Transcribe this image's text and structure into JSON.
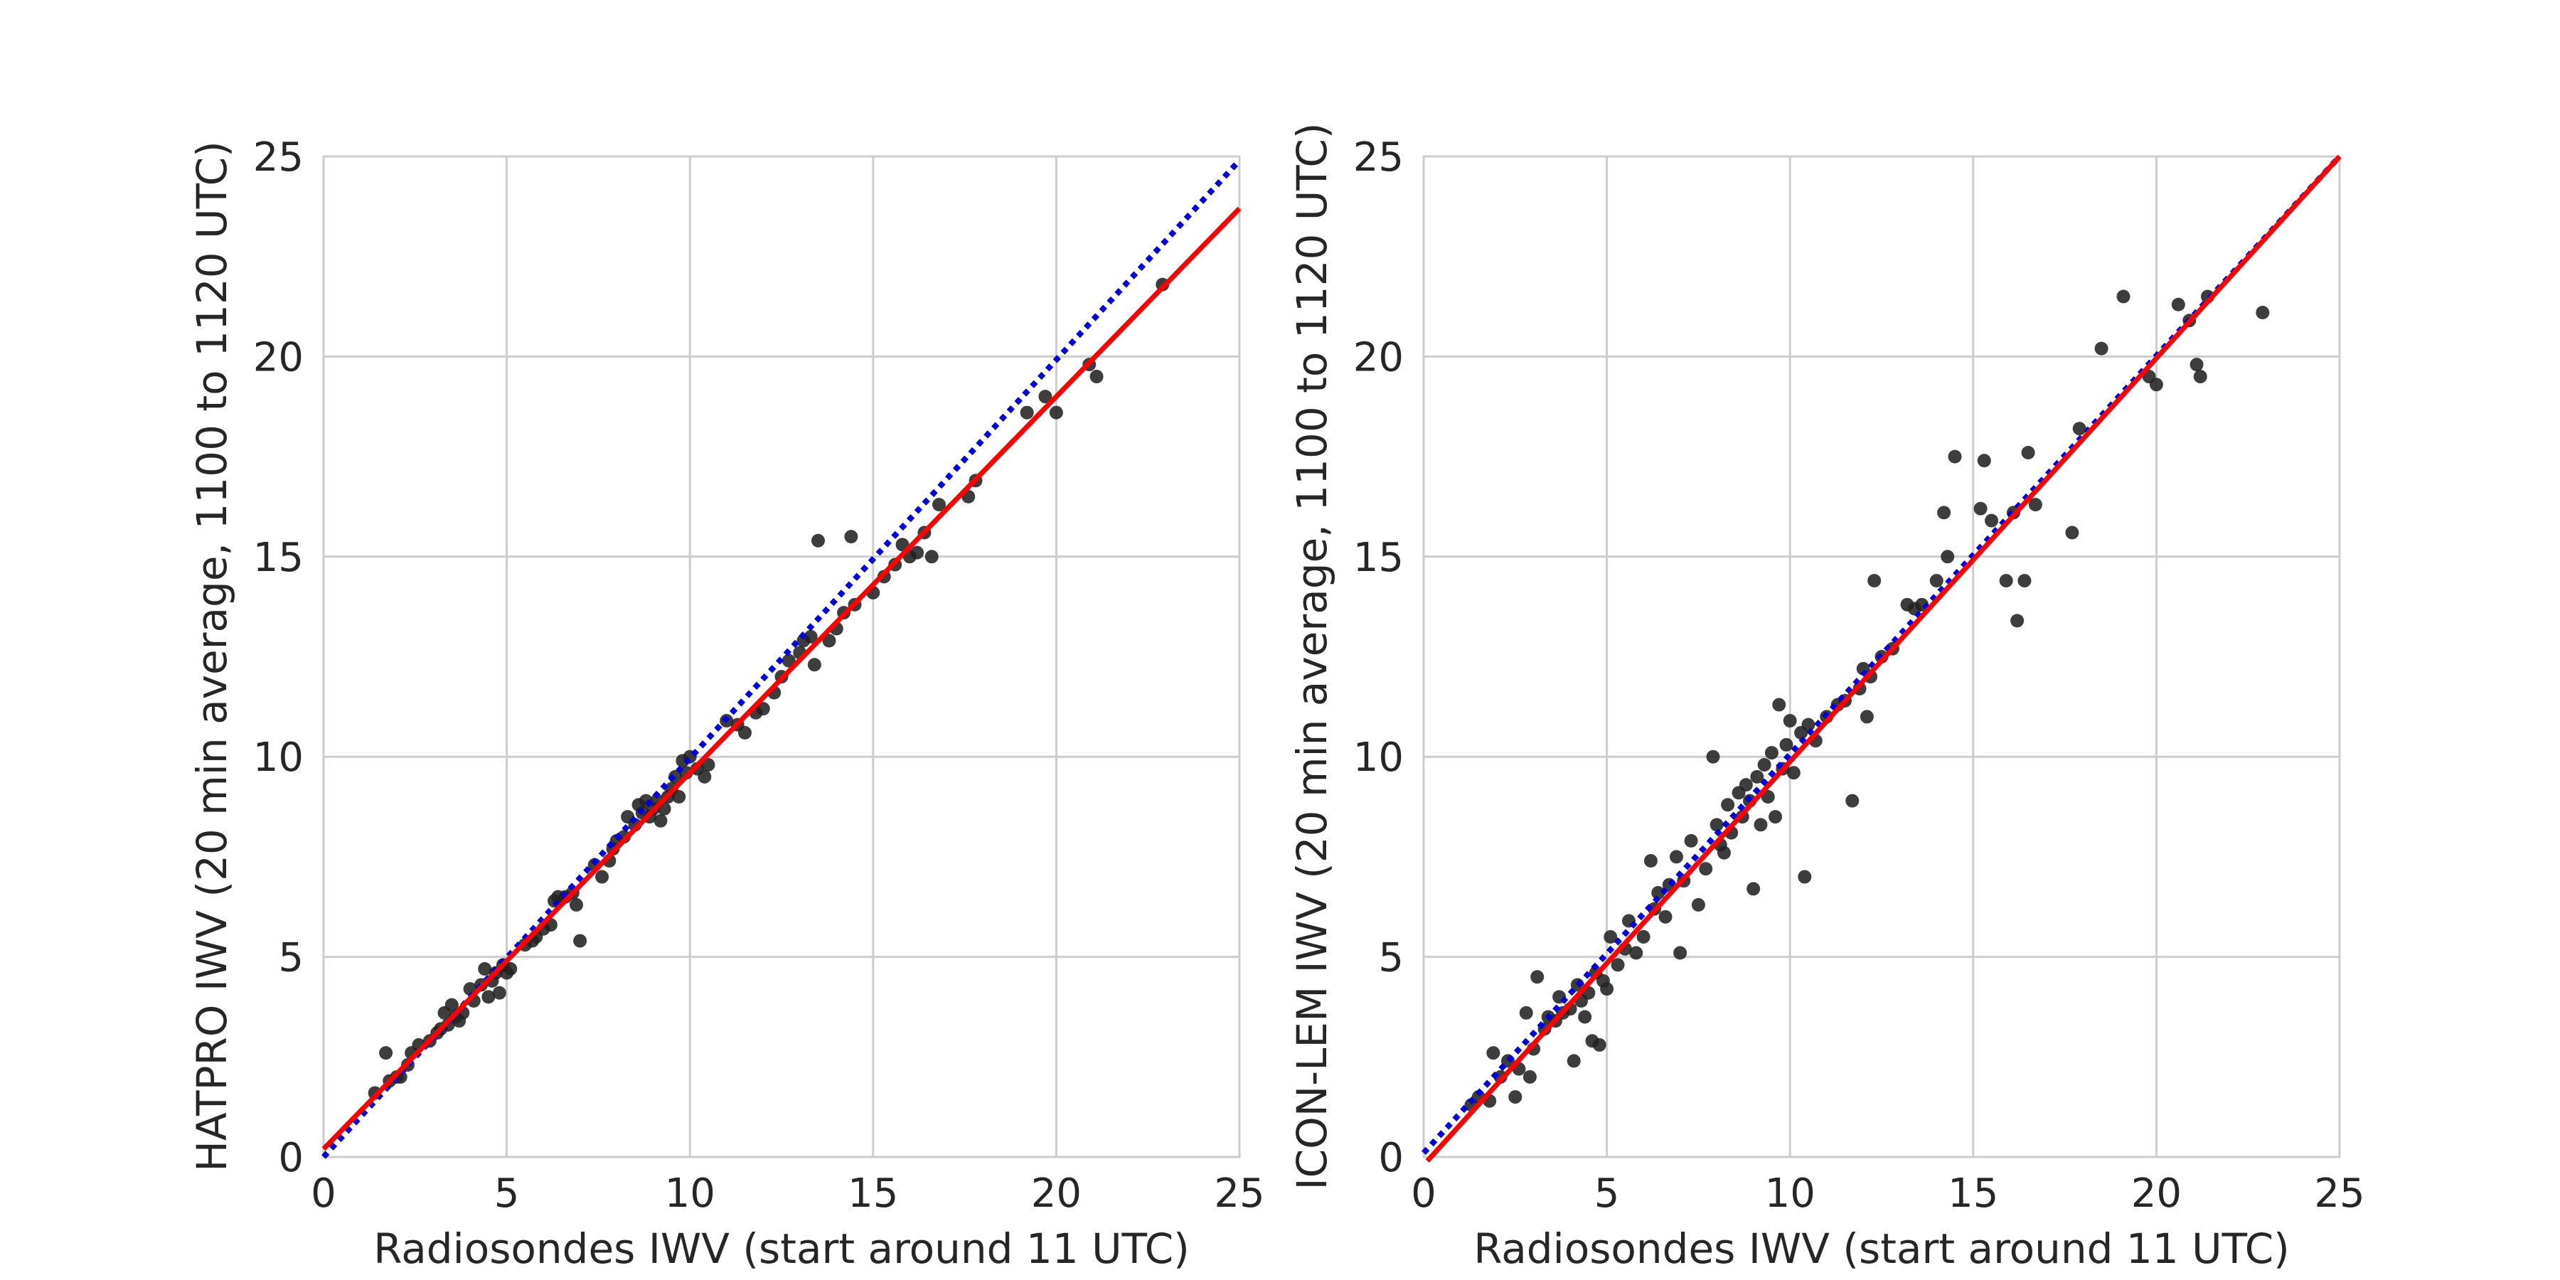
{
  "chart_data": [
    {
      "type": "scatter",
      "title": "",
      "xlabel": "Radiosondes IWV (start around 11 UTC)",
      "ylabel": "HATPRO IWV (20 min average, 1100 to 1120 UTC)",
      "xlim": [
        0,
        25
      ],
      "ylim": [
        0,
        25
      ],
      "xticks": [
        0,
        5,
        10,
        15,
        20,
        25
      ],
      "yticks": [
        0,
        5,
        10,
        15,
        20,
        25
      ],
      "grid": true,
      "legend": "none",
      "colors": {
        "points": "#222222",
        "fit_line": "#ff0000",
        "dotted_line": "#0000dd",
        "grid": "#cccccc"
      },
      "fit_line": {
        "style": "solid",
        "points": [
          [
            0,
            0.2
          ],
          [
            25,
            23.7
          ]
        ]
      },
      "dotted_line": {
        "style": "dotted",
        "points": [
          [
            0,
            0.0
          ],
          [
            25,
            24.9
          ]
        ]
      },
      "points": [
        [
          1.4,
          1.6
        ],
        [
          1.7,
          2.6
        ],
        [
          1.8,
          1.9
        ],
        [
          2.0,
          2.0
        ],
        [
          2.1,
          2.0
        ],
        [
          2.3,
          2.3
        ],
        [
          2.4,
          2.6
        ],
        [
          2.6,
          2.8
        ],
        [
          2.9,
          2.9
        ],
        [
          3.1,
          3.1
        ],
        [
          3.2,
          3.2
        ],
        [
          3.3,
          3.6
        ],
        [
          3.4,
          3.3
        ],
        [
          3.5,
          3.8
        ],
        [
          3.6,
          3.5
        ],
        [
          3.7,
          3.4
        ],
        [
          3.8,
          3.6
        ],
        [
          4.0,
          4.2
        ],
        [
          4.1,
          3.9
        ],
        [
          4.3,
          4.3
        ],
        [
          4.4,
          4.7
        ],
        [
          4.5,
          4.0
        ],
        [
          4.6,
          4.4
        ],
        [
          4.7,
          4.6
        ],
        [
          4.8,
          4.1
        ],
        [
          4.9,
          4.8
        ],
        [
          5.0,
          4.6
        ],
        [
          5.1,
          4.7
        ],
        [
          5.5,
          5.3
        ],
        [
          5.7,
          5.4
        ],
        [
          5.8,
          5.5
        ],
        [
          6.0,
          5.7
        ],
        [
          6.2,
          5.8
        ],
        [
          6.3,
          6.4
        ],
        [
          6.4,
          6.5
        ],
        [
          6.6,
          6.5
        ],
        [
          6.8,
          6.6
        ],
        [
          6.9,
          6.3
        ],
        [
          7.0,
          5.4
        ],
        [
          7.4,
          7.3
        ],
        [
          7.6,
          7.0
        ],
        [
          7.8,
          7.4
        ],
        [
          7.9,
          7.7
        ],
        [
          8.0,
          7.9
        ],
        [
          8.2,
          8.0
        ],
        [
          8.3,
          8.5
        ],
        [
          8.5,
          8.3
        ],
        [
          8.6,
          8.8
        ],
        [
          8.7,
          8.6
        ],
        [
          8.8,
          8.9
        ],
        [
          8.9,
          8.5
        ],
        [
          9.0,
          8.7
        ],
        [
          9.1,
          8.9
        ],
        [
          9.2,
          8.4
        ],
        [
          9.3,
          8.7
        ],
        [
          9.4,
          9.0
        ],
        [
          9.5,
          9.2
        ],
        [
          9.6,
          9.5
        ],
        [
          9.7,
          9.0
        ],
        [
          9.8,
          9.9
        ],
        [
          9.9,
          9.6
        ],
        [
          10.0,
          10.0
        ],
        [
          10.2,
          9.7
        ],
        [
          10.4,
          9.5
        ],
        [
          10.5,
          9.8
        ],
        [
          11.0,
          10.9
        ],
        [
          11.3,
          10.8
        ],
        [
          11.5,
          10.6
        ],
        [
          11.8,
          11.1
        ],
        [
          12.0,
          11.2
        ],
        [
          12.3,
          11.6
        ],
        [
          12.5,
          12.0
        ],
        [
          12.7,
          12.4
        ],
        [
          13.0,
          12.6
        ],
        [
          13.1,
          12.9
        ],
        [
          13.3,
          13.0
        ],
        [
          13.4,
          12.3
        ],
        [
          13.5,
          15.4
        ],
        [
          13.8,
          12.9
        ],
        [
          14.0,
          13.2
        ],
        [
          14.2,
          13.6
        ],
        [
          14.4,
          15.5
        ],
        [
          14.5,
          13.8
        ],
        [
          15.0,
          14.1
        ],
        [
          15.3,
          14.5
        ],
        [
          15.6,
          14.8
        ],
        [
          15.8,
          15.3
        ],
        [
          16.0,
          15.0
        ],
        [
          16.2,
          15.1
        ],
        [
          16.4,
          15.6
        ],
        [
          16.6,
          15.0
        ],
        [
          16.8,
          16.3
        ],
        [
          17.6,
          16.5
        ],
        [
          17.8,
          16.9
        ],
        [
          19.2,
          18.6
        ],
        [
          19.7,
          19.0
        ],
        [
          20.0,
          18.6
        ],
        [
          20.9,
          19.8
        ],
        [
          21.1,
          19.5
        ],
        [
          22.9,
          21.8
        ]
      ]
    },
    {
      "type": "scatter",
      "title": "",
      "xlabel": "Radiosondes IWV (start around 11 UTC)",
      "ylabel": "ICON-LEM IWV (20 min average, 1100 to 1120 UTC)",
      "xlim": [
        0,
        25
      ],
      "ylim": [
        0,
        25
      ],
      "xticks": [
        0,
        5,
        10,
        15,
        20,
        25
      ],
      "yticks": [
        0,
        5,
        10,
        15,
        20,
        25
      ],
      "grid": true,
      "legend": "none",
      "colors": {
        "points": "#222222",
        "fit_line": "#ff0000",
        "dotted_line": "#0000dd",
        "grid": "#cccccc"
      },
      "fit_line": {
        "style": "solid",
        "points": [
          [
            0.1,
            -0.1
          ],
          [
            25,
            25.0
          ]
        ]
      },
      "dotted_line": {
        "style": "dotted",
        "points": [
          [
            0,
            0.1
          ],
          [
            25,
            25.0
          ]
        ]
      },
      "points": [
        [
          1.3,
          1.3
        ],
        [
          1.5,
          1.5
        ],
        [
          1.8,
          1.4
        ],
        [
          1.9,
          2.6
        ],
        [
          2.1,
          2.0
        ],
        [
          2.3,
          2.4
        ],
        [
          2.5,
          1.5
        ],
        [
          2.6,
          2.2
        ],
        [
          2.8,
          3.6
        ],
        [
          2.9,
          2.0
        ],
        [
          3.0,
          2.7
        ],
        [
          3.1,
          4.5
        ],
        [
          3.3,
          3.2
        ],
        [
          3.4,
          3.5
        ],
        [
          3.6,
          3.4
        ],
        [
          3.7,
          4.0
        ],
        [
          3.8,
          3.6
        ],
        [
          4.0,
          3.7
        ],
        [
          4.1,
          2.4
        ],
        [
          4.2,
          4.3
        ],
        [
          4.3,
          3.9
        ],
        [
          4.4,
          3.5
        ],
        [
          4.5,
          4.1
        ],
        [
          4.6,
          2.9
        ],
        [
          4.7,
          4.6
        ],
        [
          4.8,
          2.8
        ],
        [
          4.9,
          4.4
        ],
        [
          5.0,
          4.2
        ],
        [
          5.1,
          5.5
        ],
        [
          5.3,
          4.8
        ],
        [
          5.5,
          5.2
        ],
        [
          5.6,
          5.9
        ],
        [
          5.8,
          5.1
        ],
        [
          6.0,
          5.5
        ],
        [
          6.2,
          7.4
        ],
        [
          6.3,
          6.2
        ],
        [
          6.4,
          6.6
        ],
        [
          6.6,
          6.0
        ],
        [
          6.7,
          6.8
        ],
        [
          6.9,
          7.5
        ],
        [
          7.0,
          5.1
        ],
        [
          7.1,
          6.9
        ],
        [
          7.3,
          7.9
        ],
        [
          7.5,
          6.3
        ],
        [
          7.7,
          7.2
        ],
        [
          7.9,
          10.0
        ],
        [
          8.0,
          8.3
        ],
        [
          8.1,
          7.8
        ],
        [
          8.2,
          7.6
        ],
        [
          8.3,
          8.8
        ],
        [
          8.4,
          8.1
        ],
        [
          8.6,
          9.1
        ],
        [
          8.7,
          8.5
        ],
        [
          8.8,
          9.3
        ],
        [
          8.9,
          8.9
        ],
        [
          9.0,
          6.7
        ],
        [
          9.1,
          9.5
        ],
        [
          9.2,
          8.3
        ],
        [
          9.3,
          9.8
        ],
        [
          9.4,
          9.0
        ],
        [
          9.5,
          10.1
        ],
        [
          9.6,
          8.5
        ],
        [
          9.7,
          11.3
        ],
        [
          9.8,
          9.7
        ],
        [
          9.9,
          10.3
        ],
        [
          10.0,
          10.9
        ],
        [
          10.1,
          9.6
        ],
        [
          10.3,
          10.6
        ],
        [
          10.4,
          7.0
        ],
        [
          10.5,
          10.8
        ],
        [
          10.7,
          10.4
        ],
        [
          11.0,
          11.0
        ],
        [
          11.3,
          11.3
        ],
        [
          11.5,
          11.4
        ],
        [
          11.7,
          8.9
        ],
        [
          11.9,
          11.7
        ],
        [
          12.0,
          12.2
        ],
        [
          12.1,
          11.0
        ],
        [
          12.2,
          12.0
        ],
        [
          12.3,
          14.4
        ],
        [
          12.5,
          12.5
        ],
        [
          12.8,
          12.7
        ],
        [
          13.2,
          13.8
        ],
        [
          13.4,
          13.7
        ],
        [
          13.6,
          13.8
        ],
        [
          14.0,
          14.4
        ],
        [
          14.2,
          16.1
        ],
        [
          14.3,
          15.0
        ],
        [
          14.5,
          17.5
        ],
        [
          15.2,
          16.2
        ],
        [
          15.3,
          17.4
        ],
        [
          15.5,
          15.9
        ],
        [
          15.9,
          14.4
        ],
        [
          16.1,
          16.1
        ],
        [
          16.2,
          13.4
        ],
        [
          16.4,
          14.4
        ],
        [
          16.5,
          17.6
        ],
        [
          16.7,
          16.3
        ],
        [
          17.7,
          15.6
        ],
        [
          17.9,
          18.2
        ],
        [
          18.5,
          20.2
        ],
        [
          19.1,
          21.5
        ],
        [
          19.8,
          19.5
        ],
        [
          20.0,
          19.3
        ],
        [
          20.6,
          21.3
        ],
        [
          20.9,
          20.9
        ],
        [
          21.1,
          19.8
        ],
        [
          21.2,
          19.5
        ],
        [
          21.4,
          21.5
        ],
        [
          22.9,
          21.1
        ]
      ]
    }
  ]
}
